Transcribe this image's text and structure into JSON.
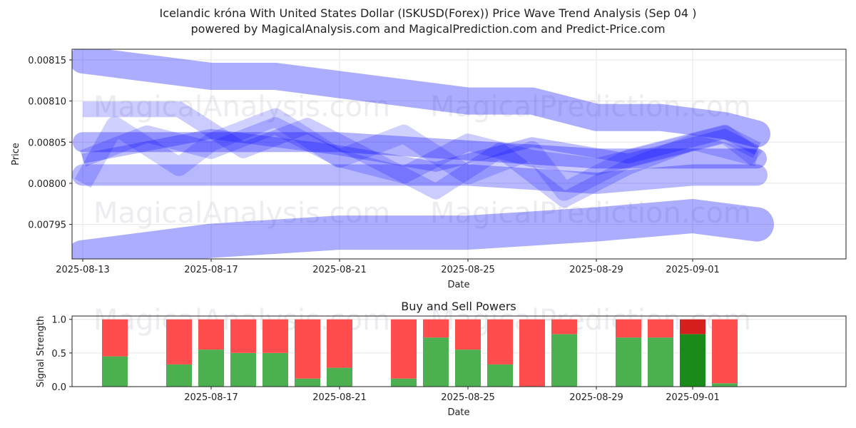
{
  "title_line1": "Icelandic króna With United States Dollar (ISKUSD(Forex)) Price Wave Trend Analysis (Sep 04 )",
  "title_line2": "powered by MagicalAnalysis.com and MagicalPrediction.com and Predict-Price.com",
  "watermarks": [
    "MagicalAnalysis.com",
    "MagicalPrediction.com"
  ],
  "colors": {
    "wave": "#0000ff",
    "buy": "#4caf50",
    "sell": "#ff4d4d",
    "buy_dark": "#1a8a1a",
    "sell_dark": "#d62020"
  },
  "chart_data": [
    {
      "type": "line",
      "xlabel": "Date",
      "ylabel": "Price",
      "x_tick_labels": [
        "2025-08-13",
        "2025-08-17",
        "2025-08-21",
        "2025-08-25",
        "2025-08-29",
        "2025-09-01"
      ],
      "y_tick_labels": [
        "0.00795",
        "0.00800",
        "0.00805",
        "0.00810",
        "0.00815"
      ],
      "ylim": [
        0.007908,
        0.008163
      ],
      "xlim": [
        "2025-08-13",
        "2025-09-04"
      ],
      "grid": true,
      "series": [
        {
          "x": [
            "2025-08-13",
            "2025-08-15",
            "2025-08-17",
            "2025-08-19",
            "2025-08-21",
            "2025-08-23",
            "2025-08-25",
            "2025-08-27",
            "2025-08-29",
            "2025-08-31",
            "2025-09-02",
            "2025-09-03"
          ],
          "values": [
            0.00815,
            0.00814,
            0.00813,
            0.00813,
            0.00812,
            0.00811,
            0.0081,
            0.0081,
            0.00808,
            0.00808,
            0.00807,
            0.00806
          ]
        },
        {
          "x": [
            "2025-08-13",
            "2025-08-17",
            "2025-08-21",
            "2025-08-25",
            "2025-08-29",
            "2025-09-01",
            "2025-09-03"
          ],
          "values": [
            0.00805,
            0.00805,
            0.00805,
            0.00804,
            0.00803,
            0.00803,
            0.00803
          ]
        },
        {
          "x": [
            "2025-08-13",
            "2025-08-17",
            "2025-08-21",
            "2025-08-25",
            "2025-08-29",
            "2025-09-01",
            "2025-09-03"
          ],
          "values": [
            0.00801,
            0.00801,
            0.00801,
            0.00801,
            0.008,
            0.00801,
            0.00801
          ]
        },
        {
          "x": [
            "2025-08-13",
            "2025-08-17",
            "2025-08-21",
            "2025-08-25",
            "2025-08-29",
            "2025-09-01",
            "2025-09-03"
          ],
          "values": [
            0.00791,
            0.00793,
            0.00794,
            0.00794,
            0.00795,
            0.00796,
            0.00795
          ]
        },
        {
          "x": [
            "2025-08-13",
            "2025-08-14",
            "2025-08-16",
            "2025-08-17",
            "2025-08-19",
            "2025-08-21",
            "2025-08-23",
            "2025-08-25",
            "2025-08-27",
            "2025-08-28",
            "2025-08-30",
            "2025-09-01",
            "2025-09-02",
            "2025-09-03"
          ],
          "values": [
            0.008,
            0.00807,
            0.00802,
            0.00805,
            0.00808,
            0.00803,
            0.00806,
            0.00801,
            0.00804,
            0.00799,
            0.00803,
            0.00805,
            0.00806,
            0.00803
          ]
        },
        {
          "x": [
            "2025-08-13",
            "2025-08-15",
            "2025-08-17",
            "2025-08-19",
            "2025-08-21",
            "2025-08-23",
            "2025-08-25",
            "2025-08-27",
            "2025-08-29",
            "2025-08-31",
            "2025-09-02",
            "2025-09-03"
          ],
          "values": [
            0.00803,
            0.00806,
            0.00804,
            0.00807,
            0.00803,
            0.00801,
            0.00805,
            0.00803,
            0.00802,
            0.00804,
            0.00806,
            0.00804
          ]
        },
        {
          "x": [
            "2025-08-13",
            "2025-08-16",
            "2025-08-18",
            "2025-08-20",
            "2025-08-22",
            "2025-08-24",
            "2025-08-26",
            "2025-08-28",
            "2025-08-30",
            "2025-09-01",
            "2025-09-03"
          ],
          "values": [
            0.00809,
            0.00809,
            0.00804,
            0.00807,
            0.00803,
            0.00799,
            0.00804,
            0.00798,
            0.00802,
            0.00805,
            0.00803
          ]
        },
        {
          "x": [
            "2025-08-13",
            "2025-08-17",
            "2025-08-21",
            "2025-08-24",
            "2025-08-27",
            "2025-08-30",
            "2025-09-02",
            "2025-09-03"
          ],
          "values": [
            0.00803,
            0.00806,
            0.00804,
            0.00802,
            0.00805,
            0.00803,
            0.00806,
            0.00804
          ]
        }
      ]
    },
    {
      "type": "bar",
      "title": "Buy and Sell Powers",
      "xlabel": "Date",
      "ylabel": "Signal Strength",
      "x_tick_labels": [
        "2025-08-17",
        "2025-08-21",
        "2025-08-25",
        "2025-08-29",
        "2025-09-01"
      ],
      "y_tick_labels": [
        "0.0",
        "0.5",
        "1.0"
      ],
      "ylim": [
        0,
        1.05
      ],
      "xlim": [
        "2025-08-13",
        "2025-09-04"
      ],
      "categories": [
        "2025-08-14",
        "2025-08-16",
        "2025-08-17",
        "2025-08-18",
        "2025-08-19",
        "2025-08-20",
        "2025-08-21",
        "2025-08-23",
        "2025-08-24",
        "2025-08-25",
        "2025-08-26",
        "2025-08-27",
        "2025-08-28",
        "2025-08-30",
        "2025-08-31",
        "2025-09-01",
        "2025-09-02"
      ],
      "series": [
        {
          "name": "buy",
          "values": [
            0.45,
            0.33,
            0.55,
            0.5,
            0.5,
            0.12,
            0.28,
            0.12,
            0.73,
            0.55,
            0.33,
            0.0,
            0.78,
            0.73,
            0.73,
            0.78,
            0.05
          ]
        },
        {
          "name": "sell",
          "values": [
            0.55,
            0.67,
            0.45,
            0.5,
            0.5,
            0.88,
            0.72,
            0.88,
            0.27,
            0.45,
            0.67,
            1.0,
            0.22,
            0.27,
            0.27,
            0.22,
            0.95
          ]
        }
      ],
      "highlight_category": "2025-09-01"
    }
  ]
}
